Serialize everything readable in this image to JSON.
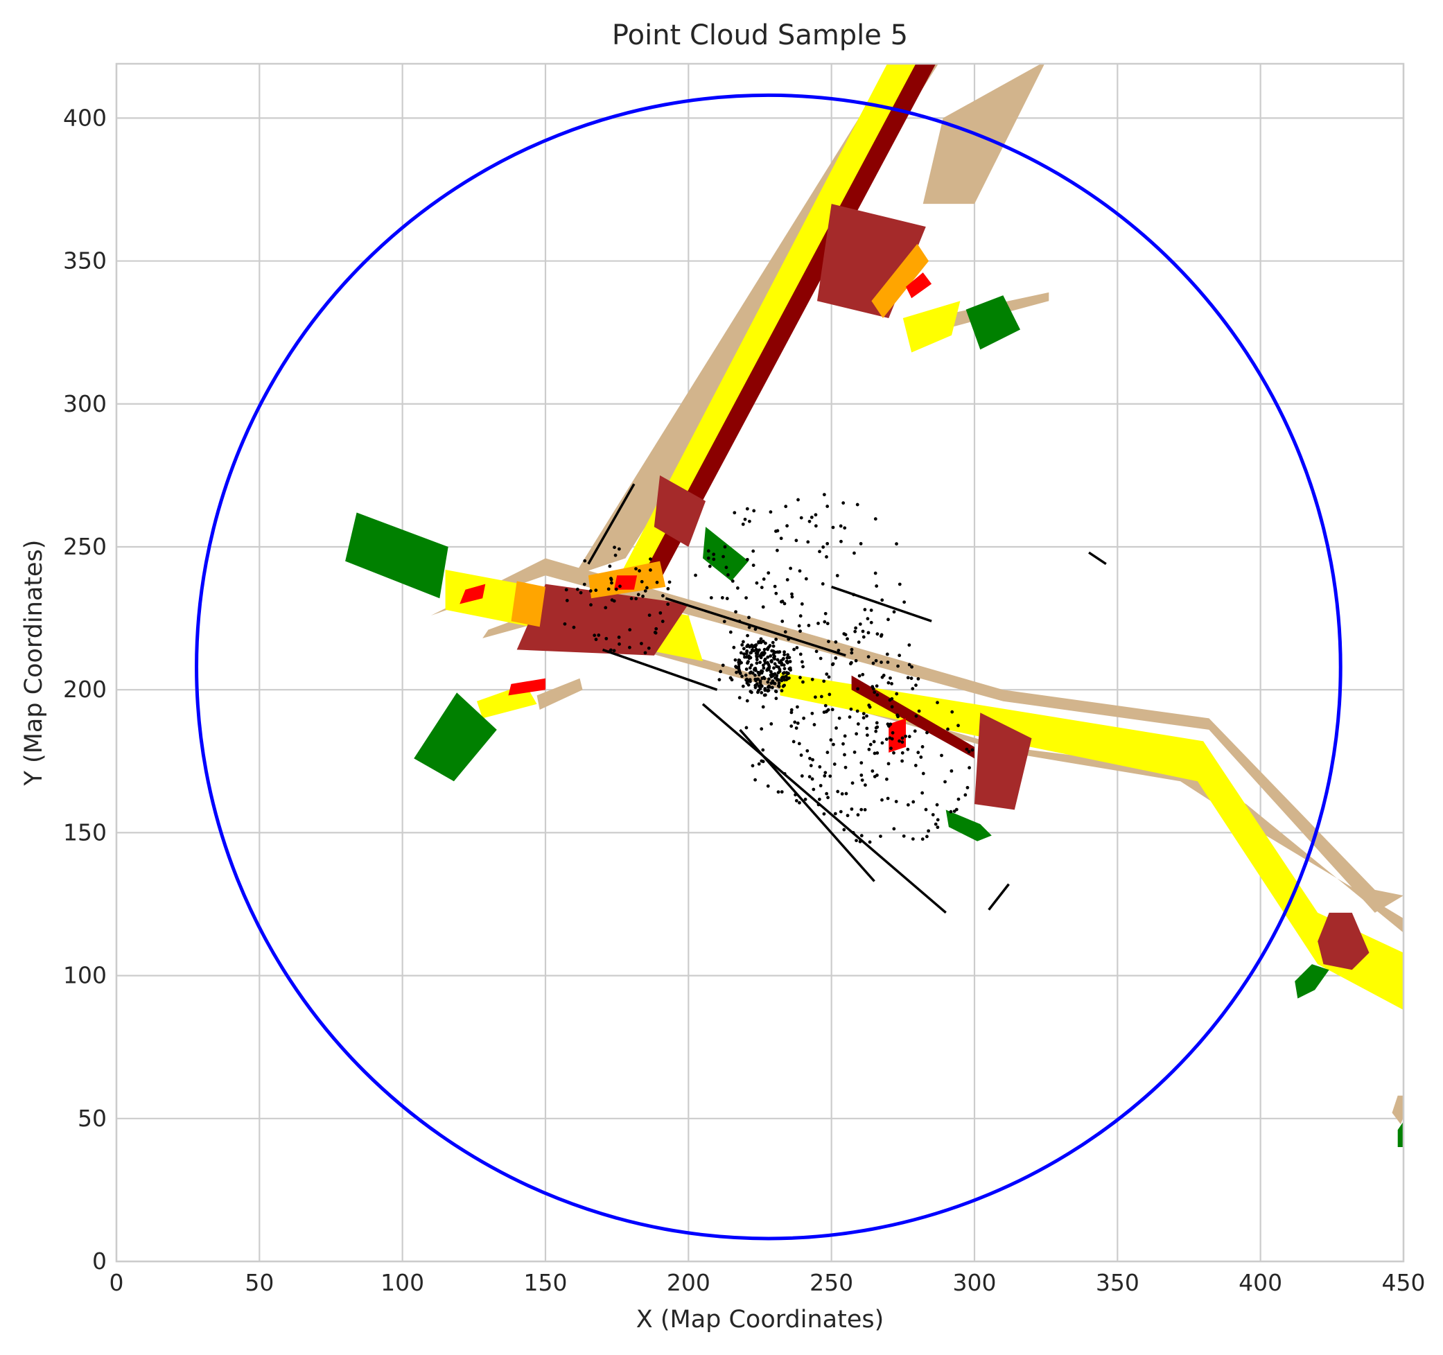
{
  "chart_data": {
    "type": "scatter",
    "title": "Point Cloud Sample 5",
    "xlabel": "X (Map Coordinates)",
    "ylabel": "Y (Map Coordinates)",
    "xlim": [
      0,
      450
    ],
    "ylim": [
      0,
      419
    ],
    "x_ticks": [
      0,
      50,
      100,
      150,
      200,
      250,
      300,
      350,
      400,
      450
    ],
    "y_ticks": [
      0,
      50,
      100,
      150,
      200,
      250,
      300,
      350,
      400
    ],
    "grid": true,
    "colors": {
      "sidewalk": "#D2B48C",
      "lane": "#FFFF00",
      "divider": "#8B0000",
      "intersection": "#A52A2A",
      "crosswalk": "#FFA500",
      "marking": "#FF0000",
      "vegetation": "#008000",
      "points": "#000000",
      "range_circle": "#0000FF"
    },
    "range_circle": {
      "center": [
        228,
        208
      ],
      "radius": 200
    },
    "map_layers": [
      {
        "name": "sidewalk",
        "polygons": [
          [
            [
              160,
              240
            ],
            [
              272,
              420
            ],
            [
              288,
              420
            ],
            [
              178,
              246
            ]
          ],
          [
            [
              289,
              400
            ],
            [
              325,
              420
            ],
            [
              300,
              370
            ],
            [
              282,
              370
            ]
          ],
          [
            [
              285,
              325
            ],
            [
              326,
              336
            ],
            [
              326,
              339
            ],
            [
              284,
              330
            ]
          ],
          [
            [
              128,
              233
            ],
            [
              311,
              180
            ],
            [
              375,
              172
            ],
            [
              395,
              160
            ],
            [
              450,
              115
            ],
            [
              450,
              120
            ],
            [
              392,
              155
            ],
            [
              372,
              168
            ],
            [
              312,
              178
            ],
            [
              128,
              229
            ]
          ],
          [
            [
              110,
              226
            ],
            [
              150,
              246
            ],
            [
              310,
              200
            ],
            [
              382,
              190
            ],
            [
              440,
              130
            ],
            [
              450,
              128
            ],
            [
              440,
              122
            ],
            [
              382,
              186
            ],
            [
              310,
              196
            ],
            [
              150,
              240
            ]
          ],
          [
            [
              130,
              221
            ],
            [
              160,
              232
            ],
            [
              157,
              226
            ],
            [
              128,
              218
            ]
          ],
          [
            [
              148,
              193
            ],
            [
              163,
              200
            ],
            [
              162,
              204
            ],
            [
              147,
              198
            ]
          ],
          [
            [
              449,
              48
            ],
            [
              453,
              58
            ],
            [
              448,
              58
            ],
            [
              446,
              52
            ]
          ]
        ]
      },
      {
        "name": "lane",
        "polygons": [
          [
            [
              176,
              240
            ],
            [
              270,
              420
            ],
            [
              284,
              420
            ],
            [
              190,
              240
            ]
          ],
          [
            [
              115,
              242
            ],
            [
              200,
              226
            ],
            [
              205,
              210
            ],
            [
              115,
              228
            ]
          ],
          [
            [
              232,
              206
            ],
            [
              380,
              182
            ],
            [
              420,
              122
            ],
            [
              450,
              108
            ],
            [
              450,
              88
            ],
            [
              420,
              104
            ],
            [
              378,
              168
            ],
            [
              232,
              198
            ]
          ],
          [
            [
              275,
              330
            ],
            [
              295,
              336
            ],
            [
              292,
              324
            ],
            [
              278,
              318
            ]
          ],
          [
            [
              126,
              196
            ],
            [
              143,
              202
            ],
            [
              147,
              195
            ],
            [
              128,
              190
            ]
          ]
        ]
      },
      {
        "name": "divider",
        "polygons": [
          [
            [
              184,
              240
            ],
            [
              280,
              420
            ],
            [
              287,
              420
            ],
            [
              191,
              240
            ]
          ],
          [
            [
              257,
              205
            ],
            [
              300,
              180
            ],
            [
              300,
              176
            ],
            [
              257,
              200
            ]
          ]
        ]
      },
      {
        "name": "intersection",
        "polygons": [
          [
            [
              150,
              237
            ],
            [
              200,
              230
            ],
            [
              188,
              212
            ],
            [
              140,
              214
            ]
          ],
          [
            [
              302,
              192
            ],
            [
              320,
              183
            ],
            [
              314,
              158
            ],
            [
              300,
              160
            ]
          ],
          [
            [
              250,
              370
            ],
            [
              283,
              362
            ],
            [
              270,
              330
            ],
            [
              245,
              336
            ]
          ],
          [
            [
              424,
              122
            ],
            [
              432,
              122
            ],
            [
              438,
              108
            ],
            [
              432,
              102
            ],
            [
              422,
              104
            ],
            [
              420,
              112
            ]
          ],
          [
            [
              190,
              275
            ],
            [
              206,
              266
            ],
            [
              200,
              250
            ],
            [
              188,
              257
            ]
          ]
        ]
      },
      {
        "name": "crosswalk",
        "polygons": [
          [
            [
              140,
              238
            ],
            [
              150,
              236
            ],
            [
              148,
              222
            ],
            [
              138,
              224
            ]
          ],
          [
            [
              268,
              330
            ],
            [
              284,
              350
            ],
            [
              280,
              356
            ],
            [
              264,
              336
            ]
          ],
          [
            [
              165,
              240
            ],
            [
              190,
              245
            ],
            [
              192,
              236
            ],
            [
              166,
              232
            ]
          ]
        ]
      },
      {
        "name": "marking",
        "polygons": [
          [
            [
              122,
              235
            ],
            [
              129,
              237
            ],
            [
              128,
              232
            ],
            [
              120,
              230
            ]
          ],
          [
            [
              138,
              202
            ],
            [
              150,
              204
            ],
            [
              150,
              200
            ],
            [
              137,
              198
            ]
          ],
          [
            [
              278,
              337
            ],
            [
              285,
              342
            ],
            [
              282,
              346
            ],
            [
              276,
              341
            ]
          ],
          [
            [
              270,
              188
            ],
            [
              276,
              190
            ],
            [
              276,
              180
            ],
            [
              270,
              178
            ]
          ],
          [
            [
              175,
              240
            ],
            [
              182,
              240
            ],
            [
              181,
              235
            ],
            [
              174,
              235
            ]
          ]
        ]
      },
      {
        "name": "vegetation",
        "polygons": [
          [
            [
              84,
              262
            ],
            [
              116,
              250
            ],
            [
              113,
              232
            ],
            [
              80,
              245
            ]
          ],
          [
            [
              104,
              176
            ],
            [
              118,
              168
            ],
            [
              133,
              186
            ],
            [
              119,
              199
            ]
          ],
          [
            [
              297,
              333
            ],
            [
              310,
              338
            ],
            [
              316,
              326
            ],
            [
              302,
              319
            ]
          ],
          [
            [
              206,
              257
            ],
            [
              221,
              245
            ],
            [
              215,
              238
            ],
            [
              205,
              246
            ]
          ],
          [
            [
              413,
              92
            ],
            [
              419,
              95
            ],
            [
              424,
              102
            ],
            [
              418,
              104
            ],
            [
              412,
              98
            ]
          ],
          [
            [
              290,
              158
            ],
            [
              302,
              153
            ],
            [
              306,
              149
            ],
            [
              301,
              147
            ],
            [
              291,
              152
            ]
          ],
          [
            [
              448,
              40
            ],
            [
              450,
              40
            ],
            [
              450,
              49
            ],
            [
              448,
              46
            ]
          ]
        ]
      }
    ],
    "point_cloud_clusters": [
      {
        "center": [
          226,
          208
        ],
        "spread": 10,
        "count": 220
      },
      {
        "center": [
          250,
          190
        ],
        "spread": 35,
        "count": 160
      },
      {
        "center": [
          240,
          230
        ],
        "spread": 40,
        "count": 140
      },
      {
        "center": [
          270,
          175
        ],
        "spread": 30,
        "count": 90
      },
      {
        "center": [
          175,
          230
        ],
        "spread": 20,
        "count": 60
      }
    ],
    "point_cloud_lines": [
      [
        [
          165,
          244
        ],
        [
          181,
          272
        ]
      ],
      [
        [
          170,
          214
        ],
        [
          210,
          200
        ]
      ],
      [
        [
          205,
          195
        ],
        [
          290,
          122
        ]
      ],
      [
        [
          192,
          232
        ],
        [
          255,
          212
        ]
      ],
      [
        [
          218,
          186
        ],
        [
          265,
          133
        ]
      ],
      [
        [
          250,
          236
        ],
        [
          285,
          224
        ]
      ],
      [
        [
          305,
          123
        ],
        [
          312,
          132
        ]
      ],
      [
        [
          340,
          248
        ],
        [
          346,
          244
        ]
      ]
    ]
  }
}
